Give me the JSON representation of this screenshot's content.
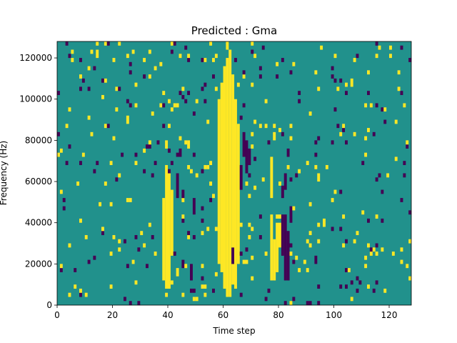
{
  "chart_data": {
    "type": "heatmap",
    "title": "Predicted : Gma",
    "xlabel": "Time step",
    "ylabel": "Frequency (Hz)",
    "xlim": [
      0,
      128
    ],
    "ylim": [
      0,
      128000
    ],
    "x_ticks": [
      0,
      20,
      40,
      60,
      80,
      100,
      120
    ],
    "y_ticks": [
      0,
      20000,
      40000,
      60000,
      80000,
      100000,
      120000
    ],
    "x_tick_labels": [
      "0",
      "20",
      "40",
      "60",
      "80",
      "100",
      "120"
    ],
    "y_tick_labels": [
      "0",
      "20000",
      "40000",
      "60000",
      "80000",
      "100000",
      "120000"
    ],
    "n_time_steps": 128,
    "n_frequency_bins": 64,
    "value_levels": [
      -1,
      0,
      1
    ],
    "colors": {
      "-1": "#440154",
      "0": "#21918c",
      "1": "#fde725"
    },
    "background_value": 0,
    "runs": [
      {
        "t": 61,
        "f0": 2,
        "f1": 60,
        "v": 1
      },
      {
        "t": 62,
        "f0": 2,
        "f1": 60,
        "v": 1
      },
      {
        "t": 60,
        "f0": 4,
        "f1": 58,
        "v": 1
      },
      {
        "t": 63,
        "f0": 5,
        "f1": 56,
        "v": 1
      },
      {
        "t": 59,
        "f0": 8,
        "f1": 54,
        "v": 1
      },
      {
        "t": 64,
        "f0": 6,
        "f1": 50,
        "v": 1
      },
      {
        "t": 58,
        "f0": 10,
        "f1": 50,
        "v": 1
      },
      {
        "t": 65,
        "f0": 10,
        "f1": 44,
        "v": 1
      },
      {
        "t": 61,
        "f0": 62,
        "f1": 64,
        "v": 1
      },
      {
        "t": 62,
        "f0": 60,
        "f1": 62,
        "v": 1
      },
      {
        "t": 39,
        "f0": 4,
        "f1": 34,
        "v": 1
      },
      {
        "t": 40,
        "f0": 4,
        "f1": 32,
        "v": 1
      },
      {
        "t": 38,
        "f0": 6,
        "f1": 26,
        "v": 1
      },
      {
        "t": 41,
        "f0": 12,
        "f1": 28,
        "v": 1
      },
      {
        "t": 39,
        "f0": 38,
        "f1": 40,
        "v": 1
      },
      {
        "t": 77,
        "f0": 6,
        "f1": 22,
        "v": 1
      },
      {
        "t": 78,
        "f0": 6,
        "f1": 16,
        "v": 1
      },
      {
        "t": 79,
        "f0": 8,
        "f1": 20,
        "v": 1
      },
      {
        "t": 80,
        "f0": 14,
        "f1": 20,
        "v": 1
      },
      {
        "t": 77,
        "f0": 26,
        "f1": 36,
        "v": 1
      },
      {
        "t": 78,
        "f0": 40,
        "f1": 42,
        "v": 1
      },
      {
        "t": 67,
        "f0": 36,
        "f1": 42,
        "v": -1
      },
      {
        "t": 68,
        "f0": 32,
        "f1": 40,
        "v": -1
      },
      {
        "t": 69,
        "f0": 34,
        "f1": 38,
        "v": -1
      },
      {
        "t": 82,
        "f0": 6,
        "f1": 22,
        "v": -1
      },
      {
        "t": 83,
        "f0": 6,
        "f1": 18,
        "v": -1
      },
      {
        "t": 81,
        "f0": 12,
        "f1": 22,
        "v": -1
      },
      {
        "t": 84,
        "f0": 20,
        "f1": 24,
        "v": -1
      },
      {
        "t": 82,
        "f0": 28,
        "f1": 32,
        "v": -1
      },
      {
        "t": 81,
        "f0": 26,
        "f1": 28,
        "v": -1
      },
      {
        "t": 83,
        "f0": 36,
        "f1": 38,
        "v": -1
      },
      {
        "t": 66,
        "f0": 28,
        "f1": 34,
        "v": -1
      },
      {
        "t": 63,
        "f0": 10,
        "f1": 14,
        "v": -1
      },
      {
        "t": 43,
        "f0": 26,
        "f1": 32,
        "v": -1
      },
      {
        "t": 48,
        "f0": 6,
        "f1": 10,
        "v": -1
      },
      {
        "t": 49,
        "f0": 22,
        "f1": 26,
        "v": -1
      },
      {
        "t": 44,
        "f0": 36,
        "f1": 38,
        "v": -1
      }
    ],
    "scatter_cells": {
      "seed": 20240531,
      "density": 0.055,
      "yellow_fraction": 0.55,
      "purple_fraction": 0.45
    }
  }
}
